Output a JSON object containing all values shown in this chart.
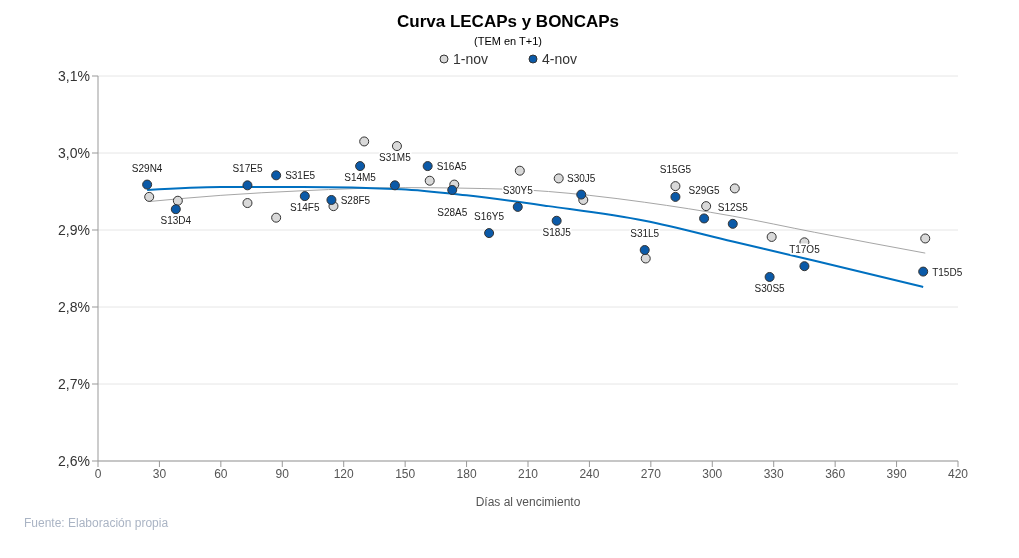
{
  "chart_data": {
    "type": "scatter",
    "title": "Curva LECAPs y BONCAPs",
    "subtitle": "(TEM en T+1)",
    "xlabel": "Días al vencimiento",
    "xlim": [
      0,
      420
    ],
    "xticks": [
      0,
      30,
      60,
      90,
      120,
      150,
      180,
      210,
      240,
      270,
      300,
      330,
      360,
      390,
      420
    ],
    "ylim": [
      2.6,
      3.1
    ],
    "yticks": [
      {
        "value": 2.6,
        "label": "2,6%"
      },
      {
        "value": 2.7,
        "label": "2,7%"
      },
      {
        "value": 2.8,
        "label": "2,8%"
      },
      {
        "value": 2.9,
        "label": "2,9%"
      },
      {
        "value": 3.0,
        "label": "3,0%"
      },
      {
        "value": 3.1,
        "label": "3,1%"
      }
    ],
    "grid": "y",
    "legend": "top",
    "marker": "circle",
    "series": [
      {
        "name": "1-nov",
        "color": "#d9d9d9",
        "x": [
          25,
          39,
          73,
          87,
          115,
          130,
          146,
          162,
          174,
          206,
          225,
          237,
          267.5,
          282,
          297,
          311,
          329,
          345,
          404
        ],
        "values": [
          2.943,
          2.938,
          2.935,
          2.916,
          2.931,
          3.015,
          3.009,
          2.964,
          2.959,
          2.977,
          2.967,
          2.939,
          2.863,
          2.957,
          2.931,
          2.954,
          2.891,
          2.884,
          2.889
        ]
      },
      {
        "name": "4-nov",
        "color": "#0b5aa8",
        "x": [
          24,
          38,
          73,
          87,
          101,
          114,
          128,
          145,
          161,
          173,
          191,
          205,
          224,
          236,
          267,
          282,
          296,
          310,
          328,
          345,
          403
        ],
        "values": [
          2.959,
          2.927,
          2.958,
          2.971,
          2.944,
          2.939,
          2.983,
          2.958,
          2.983,
          2.952,
          2.896,
          2.93,
          2.912,
          2.946,
          2.874,
          2.943,
          2.915,
          2.908,
          2.839,
          2.853,
          2.846
        ]
      },
      {
        "type": "line",
        "marker": "none",
        "color": "#a6a6a6",
        "x": [
          25,
          60,
          100,
          150,
          200,
          240,
          267,
          310,
          350,
          404
        ],
        "values": [
          2.937,
          2.945,
          2.951,
          2.955,
          2.953,
          2.945,
          2.936,
          2.918,
          2.897,
          2.87
        ]
      },
      {
        "type": "line",
        "marker": "none",
        "color": "#0070c0",
        "x": [
          24,
          60,
          100,
          148,
          180,
          220,
          267,
          310,
          350,
          403
        ],
        "values": [
          2.952,
          2.956,
          2.956,
          2.953,
          2.945,
          2.931,
          2.912,
          2.885,
          2.86,
          2.826
        ]
      }
    ],
    "annotations": [
      {
        "text": "S29N4",
        "x": 24,
        "y": 2.959
      },
      {
        "text": "S13D4",
        "x": 38,
        "y": 2.927
      },
      {
        "text": "S17E5",
        "x": 73,
        "y": 2.958
      },
      {
        "text": "S31E5",
        "x": 87,
        "y": 2.971
      },
      {
        "text": "S14F5",
        "x": 101,
        "y": 2.944
      },
      {
        "text": "S28F5",
        "x": 114,
        "y": 2.939
      },
      {
        "text": "S14M5",
        "x": 128,
        "y": 2.983
      },
      {
        "text": "S31M5",
        "x": 145,
        "y": 2.958
      },
      {
        "text": "S16A5",
        "x": 161,
        "y": 2.983
      },
      {
        "text": "S28A5",
        "x": 173,
        "y": 2.952
      },
      {
        "text": "S16Y5",
        "x": 191,
        "y": 2.896
      },
      {
        "text": "S30Y5",
        "x": 205,
        "y": 2.93
      },
      {
        "text": "S18J5",
        "x": 224,
        "y": 2.912
      },
      {
        "text": "S30J5",
        "x": 236,
        "y": 2.946
      },
      {
        "text": "S31L5",
        "x": 267,
        "y": 2.874
      },
      {
        "text": "S15G5",
        "x": 282,
        "y": 2.943
      },
      {
        "text": "S29G5",
        "x": 296,
        "y": 2.915
      },
      {
        "text": "S12S5",
        "x": 310,
        "y": 2.908
      },
      {
        "text": "S30S5",
        "x": 328,
        "y": 2.839
      },
      {
        "text": "T17O5",
        "x": 345,
        "y": 2.853
      },
      {
        "text": "T15D5",
        "x": 403,
        "y": 2.846
      },
      "Fuente: Elaboración propia"
    ]
  }
}
